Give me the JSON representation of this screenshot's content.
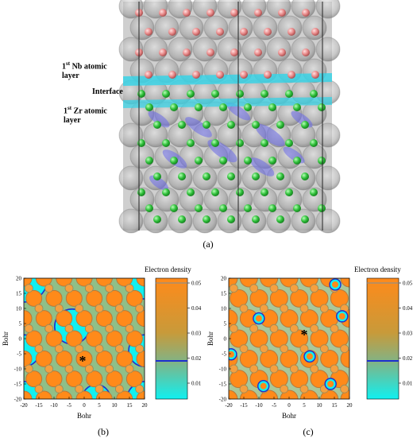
{
  "panel_a": {
    "caption": "(a)",
    "labels": {
      "nb_layer": {
        "prefix": "1",
        "sup": "st",
        "text": " Nb atomic",
        "line2": "layer"
      },
      "interface": "Interface",
      "zr_layer": {
        "prefix": "1",
        "sup": "st",
        "text": " Zr atomic",
        "line2": "layer"
      }
    },
    "colors": {
      "nb_atom": "#e88888",
      "zr_atom": "#2fbf3a",
      "interface_band": "#39d3e6",
      "density_blob": "#6a6ae8",
      "shell": "#a8a8a8"
    }
  },
  "panel_b": {
    "caption": "(b)",
    "xlabel": "Bohr",
    "ylabel": "Bohr",
    "x_ticks": [
      "-20",
      "-15",
      "-10",
      "-5",
      "0",
      "5",
      "10",
      "15",
      "20"
    ],
    "y_ticks": [
      "20",
      "15",
      "10",
      "5",
      "0",
      "-5",
      "-10",
      "-15",
      "-20"
    ],
    "marker": "*",
    "colorbar_title": "Electron density",
    "colorbar_ticks": [
      "0.05",
      "0.04",
      "0.03",
      "0.02",
      "0.01"
    ]
  },
  "panel_c": {
    "caption": "(c)",
    "xlabel": "Bohr",
    "ylabel": "Bohr",
    "x_ticks": [
      "-20",
      "-15",
      "-10",
      "-5",
      "0",
      "5",
      "10",
      "15",
      "20"
    ],
    "y_ticks": [
      "20",
      "15",
      "10",
      "5",
      "0",
      "-5",
      "-10",
      "-15",
      "-20"
    ],
    "marker": "*",
    "colorbar_title": "Electron density",
    "colorbar_ticks": [
      "0.05",
      "0.04",
      "0.03",
      "0.02",
      "0.01"
    ]
  },
  "colormap": {
    "high": "#ff8a1a",
    "mid": "#94b46a",
    "low": "#10f0f0",
    "contour_line": "#1c2fd0"
  }
}
